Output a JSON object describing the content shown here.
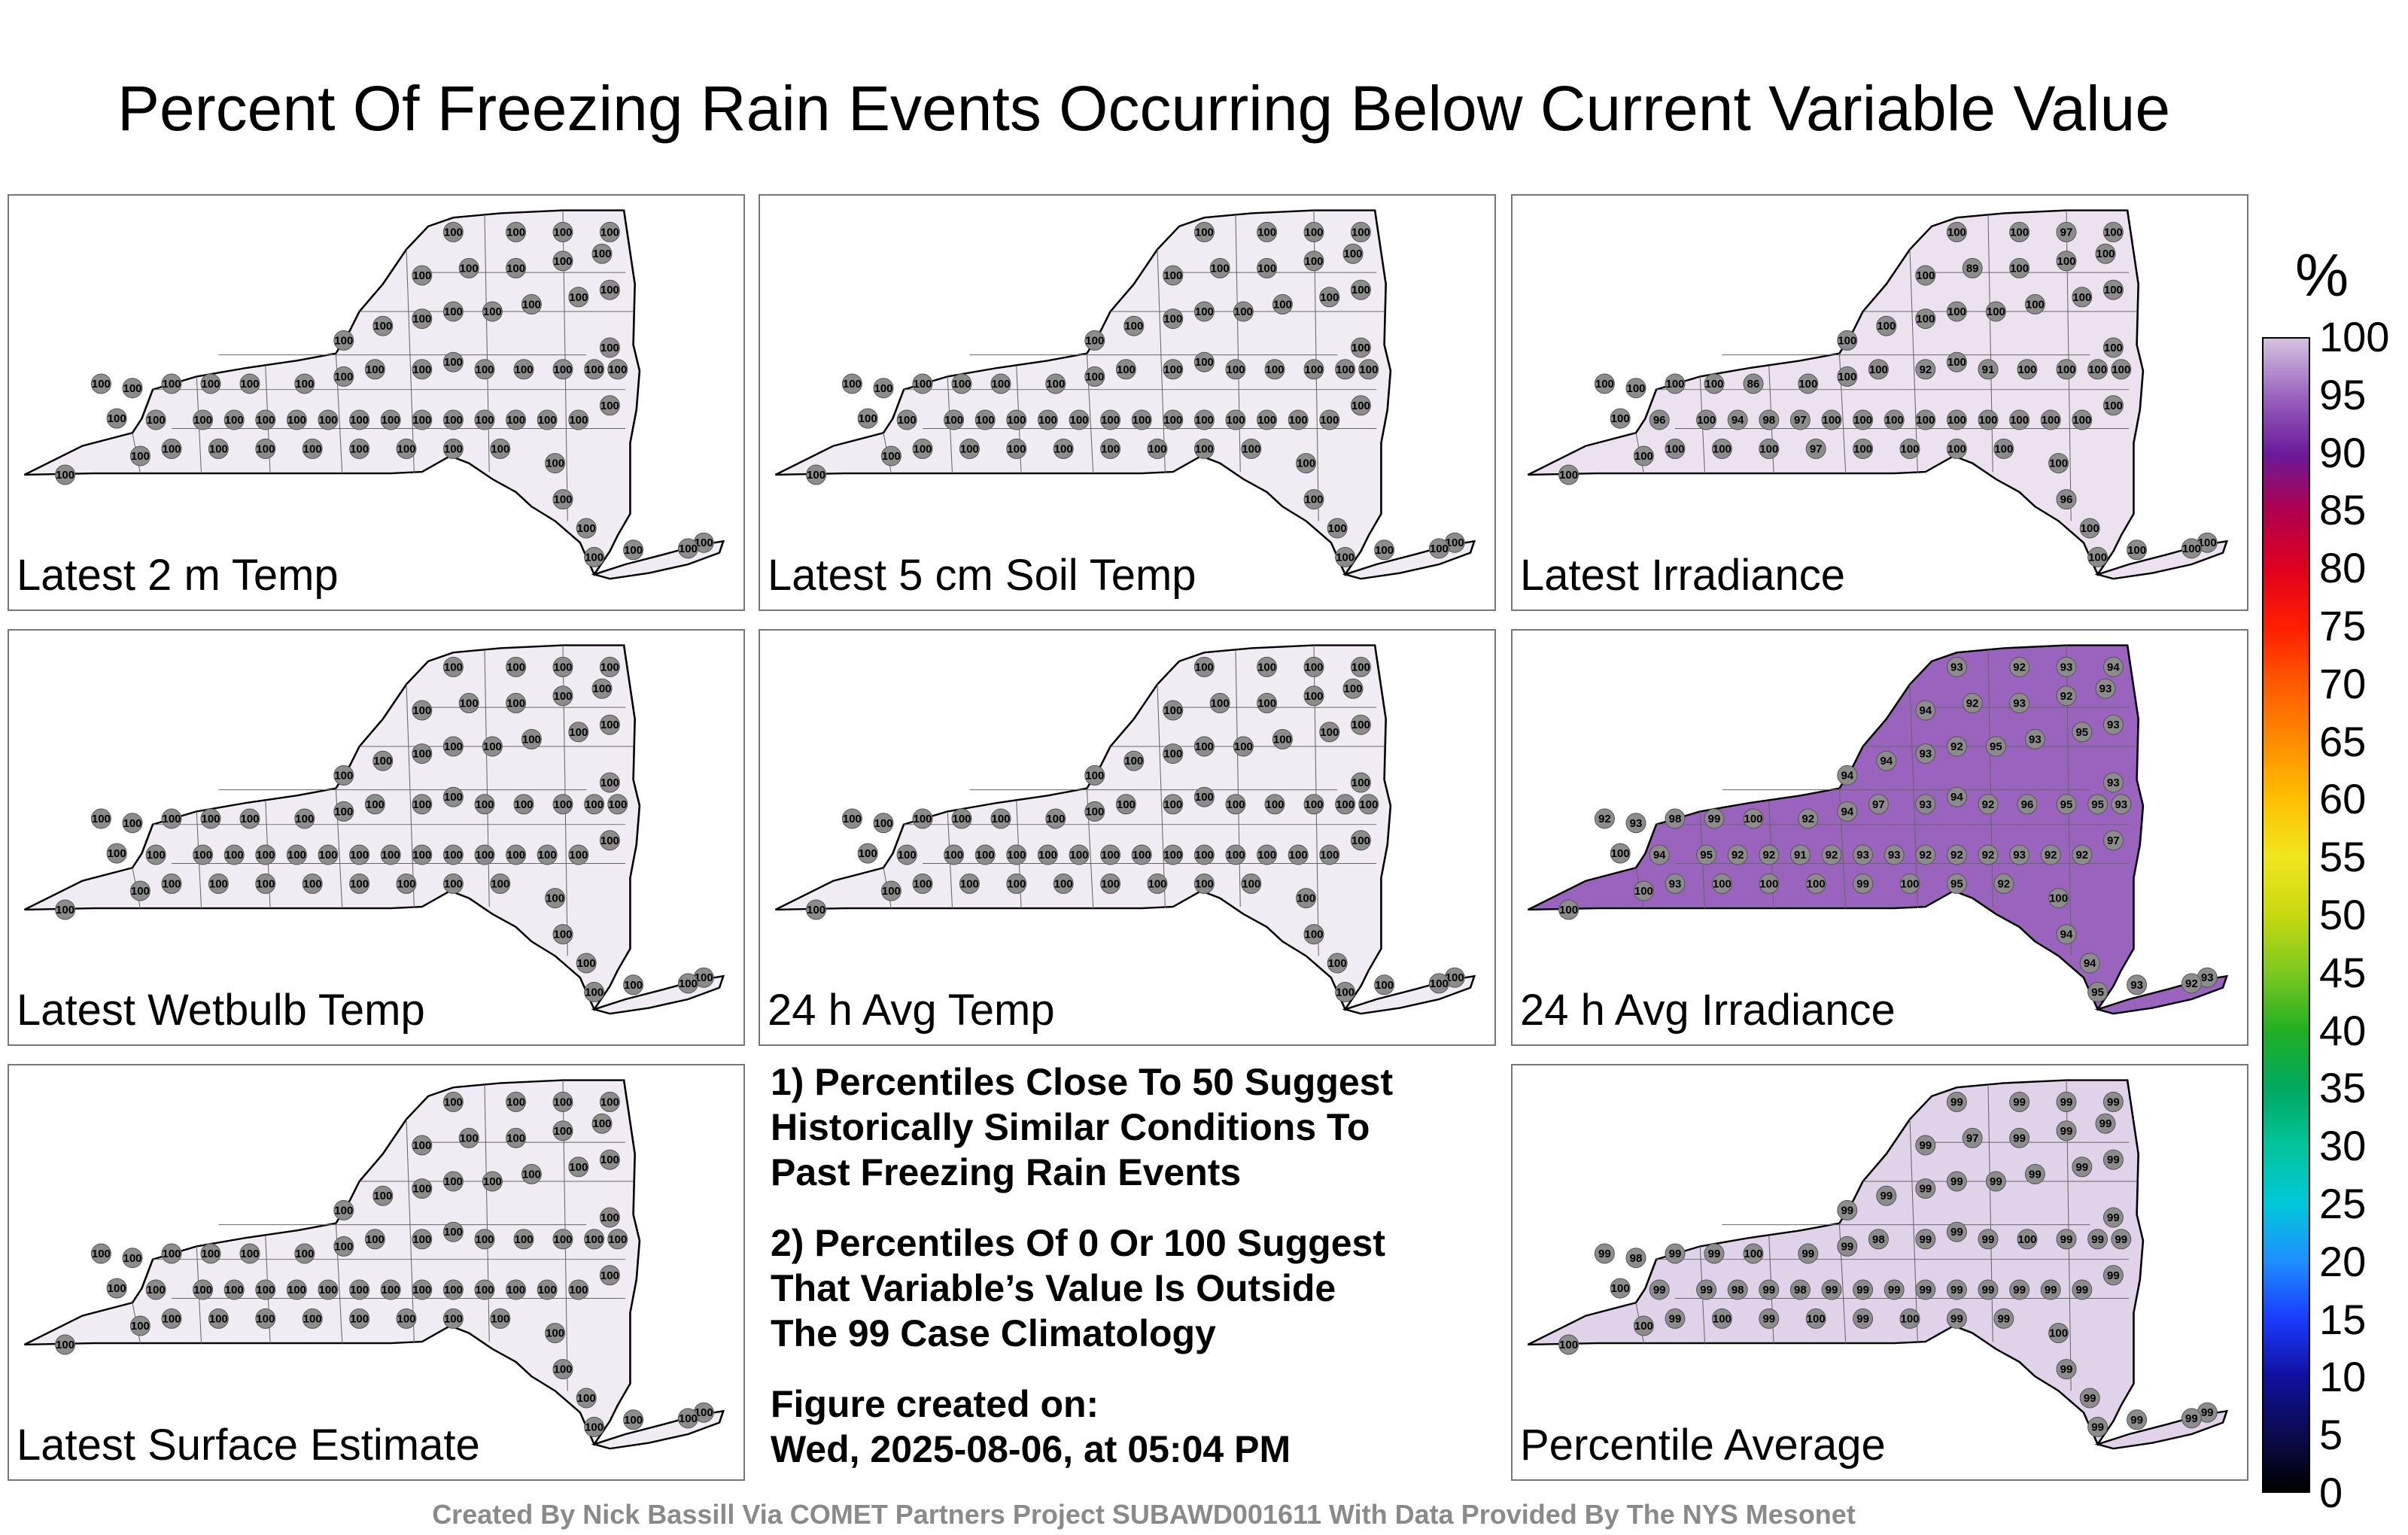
{
  "title": "Percent Of Freezing Rain Events Occurring Below Current Variable Value",
  "panels": [
    {
      "label": "Latest 2 m Temp",
      "fill": "#f1ecf4",
      "values": [
        100,
        100,
        100,
        100,
        100,
        100,
        100,
        100,
        100,
        100,
        100,
        100,
        100,
        100,
        100,
        100,
        100,
        100,
        100,
        100,
        100,
        100,
        100,
        100,
        100,
        100,
        100,
        100,
        100,
        100,
        100,
        100,
        100,
        100,
        100,
        100,
        100,
        100,
        100,
        100,
        100,
        100,
        100,
        100,
        100,
        100,
        100,
        100,
        100,
        100,
        100,
        100,
        100,
        100,
        100,
        100,
        100,
        100,
        100,
        100
      ]
    },
    {
      "label": "Latest 5 cm Soil Temp",
      "fill": "#f1ecf4",
      "values": [
        100,
        100,
        100,
        100,
        100,
        100,
        100,
        100,
        100,
        100,
        100,
        100,
        100,
        100,
        100,
        100,
        100,
        100,
        100,
        100,
        100,
        100,
        100,
        100,
        100,
        100,
        100,
        100,
        100,
        100,
        100,
        100,
        100,
        100,
        100,
        100,
        100,
        100,
        100,
        100,
        100,
        100,
        100,
        100,
        100,
        100,
        100,
        100,
        100,
        100,
        100,
        100,
        100,
        100,
        100,
        100,
        100,
        100,
        100,
        100
      ]
    },
    {
      "label": "Latest Irradiance",
      "fill": "#ece2ef",
      "values": [
        100,
        100,
        100,
        96,
        100,
        100,
        100,
        100,
        86,
        100,
        100,
        100,
        92,
        100,
        91,
        100,
        100,
        100,
        100,
        100,
        100,
        100,
        100,
        100,
        100,
        100,
        100,
        100,
        89,
        100,
        100,
        100,
        100,
        100,
        97,
        100,
        100,
        100,
        100,
        100,
        100,
        100,
        100,
        100,
        100,
        100,
        100,
        97,
        98,
        94,
        100,
        100,
        100,
        100,
        97,
        100,
        100,
        100,
        100,
        100
      ]
    },
    {
      "label": "Latest Wetbulb Temp",
      "fill": "#f1ecf4",
      "values": [
        100,
        100,
        100,
        100,
        100,
        100,
        100,
        100,
        100,
        100,
        100,
        100,
        100,
        100,
        100,
        100,
        100,
        100,
        100,
        100,
        100,
        100,
        100,
        100,
        100,
        100,
        100,
        100,
        100,
        100,
        100,
        100,
        100,
        100,
        100,
        100,
        100,
        100,
        100,
        100,
        100,
        100,
        100,
        100,
        100,
        100,
        100,
        100,
        100,
        100,
        100,
        100,
        100,
        100,
        100,
        100,
        100,
        100,
        100,
        100
      ]
    },
    {
      "label": "24 h Avg Temp",
      "fill": "#f1ecf4",
      "values": [
        100,
        100,
        100,
        100,
        100,
        100,
        100,
        100,
        100,
        100,
        100,
        100,
        100,
        100,
        100,
        100,
        100,
        100,
        100,
        100,
        100,
        100,
        100,
        100,
        100,
        100,
        100,
        100,
        100,
        100,
        100,
        100,
        100,
        100,
        100,
        100,
        100,
        100,
        100,
        100,
        100,
        100,
        100,
        100,
        100,
        100,
        100,
        100,
        100,
        100,
        100,
        100,
        100,
        100,
        100,
        100,
        100,
        100,
        100,
        100
      ]
    },
    {
      "label": "24 h Avg Irradiance",
      "fill": "#9a63bd",
      "values": [
        100,
        100,
        100,
        94,
        92,
        93,
        98,
        99,
        100,
        92,
        94,
        97,
        93,
        94,
        92,
        96,
        95,
        95,
        93,
        94,
        94,
        93,
        92,
        95,
        93,
        95,
        93,
        94,
        92,
        93,
        92,
        93,
        93,
        92,
        93,
        94,
        93,
        97,
        92,
        92,
        93,
        92,
        92,
        92,
        93,
        93,
        92,
        91,
        92,
        92,
        95,
        93,
        100,
        100,
        100,
        99,
        100,
        95,
        92,
        100
      ]
    },
    {
      "label": "Latest Surface Estimate",
      "fill": "#f1ecf4",
      "values": [
        100,
        100,
        100,
        100,
        100,
        100,
        100,
        100,
        100,
        100,
        100,
        100,
        100,
        100,
        100,
        100,
        100,
        100,
        100,
        100,
        100,
        100,
        100,
        100,
        100,
        100,
        100,
        100,
        100,
        100,
        100,
        100,
        100,
        100,
        100,
        100,
        100,
        100,
        100,
        100,
        100,
        100,
        100,
        100,
        100,
        100,
        100,
        100,
        100,
        100,
        100,
        100,
        100,
        100,
        100,
        100,
        100,
        100,
        100,
        100
      ]
    },
    {
      "label": "Percentile Average",
      "fill": "#e0d2e8",
      "values": [
        100,
        100,
        100,
        99,
        99,
        98,
        99,
        99,
        100,
        99,
        99,
        98,
        99,
        99,
        99,
        100,
        99,
        99,
        99,
        99,
        99,
        99,
        99,
        99,
        99,
        99,
        99,
        99,
        97,
        99,
        99,
        99,
        99,
        99,
        99,
        99,
        99,
        99,
        99,
        99,
        99,
        99,
        99,
        99,
        99,
        99,
        99,
        98,
        99,
        98,
        99,
        99,
        100,
        99,
        100,
        99,
        100,
        99,
        99,
        100
      ]
    }
  ],
  "notes": [
    "1) Percentiles Close To 50 Suggest\nHistorically Similar Conditions To\nPast Freezing Rain Events",
    "2) Percentiles Of 0 Or 100 Suggest\nThat Variable’s Value Is Outside\nThe 99 Case Climatology",
    "Figure created on:\nWed, 2025-08-06, at 05:04 PM"
  ],
  "colorbar": {
    "unit": "%",
    "ticks": [
      "100",
      "95",
      "90",
      "85",
      "80",
      "75",
      "70",
      "65",
      "60",
      "55",
      "50",
      "45",
      "40",
      "35",
      "30",
      "25",
      "20",
      "15",
      "10",
      "5",
      "0"
    ],
    "colors": [
      "#000000",
      "#0b0b50",
      "#1010a0",
      "#1a3cff",
      "#1e90ff",
      "#00c8d8",
      "#00c49a",
      "#00a860",
      "#22b022",
      "#7cc81e",
      "#c8d810",
      "#f0e61e",
      "#ffc000",
      "#ff8c00",
      "#ff5a00",
      "#ff1e00",
      "#e0001e",
      "#b0004e",
      "#6a1a9a",
      "#9a63bd",
      "#d4c2e0"
    ]
  },
  "credit": "Created By Nick Bassill Via COMET Partners Project SUBAWD001611 With Data Provided By The NYS Mesonet"
}
